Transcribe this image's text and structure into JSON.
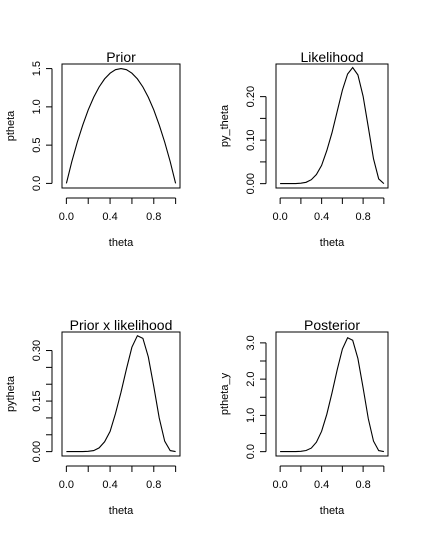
{
  "chart_data": [
    {
      "type": "line",
      "title": "Prior",
      "xlabel": "theta",
      "ylabel": "ptheta",
      "xlim": [
        -0.04,
        1.04
      ],
      "ylim": [
        -0.06,
        1.56
      ],
      "xticks": [
        0.0,
        0.2,
        0.4,
        0.6,
        0.8,
        1.0
      ],
      "xtick_labels": [
        "0.0",
        "",
        "0.4",
        "",
        "0.8",
        ""
      ],
      "yticks": [
        0.0,
        0.5,
        1.0,
        1.5
      ],
      "ytick_labels": [
        "0.0",
        "0.5",
        "1.0",
        "1.5"
      ],
      "grid": false,
      "series": [
        {
          "x": [
            0.0,
            0.05,
            0.1,
            0.15,
            0.2,
            0.25,
            0.3,
            0.35,
            0.4,
            0.45,
            0.5,
            0.55,
            0.6,
            0.65,
            0.7,
            0.75,
            0.8,
            0.85,
            0.9,
            0.95,
            1.0
          ],
          "y": [
            0.0,
            0.285,
            0.54,
            0.765,
            0.96,
            1.125,
            1.26,
            1.365,
            1.44,
            1.485,
            1.5,
            1.485,
            1.44,
            1.365,
            1.26,
            1.125,
            0.96,
            0.765,
            0.54,
            0.285,
            0.0
          ]
        }
      ]
    },
    {
      "type": "line",
      "title": "Likelihood",
      "xlabel": "theta",
      "ylabel": "py_theta",
      "xlim": [
        -0.04,
        1.04
      ],
      "ylim": [
        -0.01,
        0.275
      ],
      "xticks": [
        0.0,
        0.2,
        0.4,
        0.6,
        0.8,
        1.0
      ],
      "xtick_labels": [
        "0.0",
        "",
        "0.4",
        "",
        "0.8",
        ""
      ],
      "yticks": [
        0.0,
        0.05,
        0.1,
        0.15,
        0.2
      ],
      "ytick_labels": [
        "0.00",
        "",
        "0.10",
        "",
        "0.20"
      ],
      "grid": false,
      "series": [
        {
          "x": [
            0.0,
            0.05,
            0.1,
            0.15,
            0.2,
            0.25,
            0.3,
            0.35,
            0.4,
            0.45,
            0.5,
            0.55,
            0.6,
            0.65,
            0.7,
            0.75,
            0.8,
            0.85,
            0.9,
            0.95,
            1.0
          ],
          "y": [
            0.0,
            0.0,
            0.0,
            0.0,
            0.001,
            0.003,
            0.009,
            0.021,
            0.042,
            0.076,
            0.117,
            0.166,
            0.215,
            0.252,
            0.267,
            0.25,
            0.201,
            0.13,
            0.057,
            0.011,
            0.0
          ]
        }
      ]
    },
    {
      "type": "line",
      "title": "Prior x likelihood",
      "xlabel": "theta",
      "ylabel": "pytheta",
      "xlim": [
        -0.04,
        1.04
      ],
      "ylim": [
        -0.013,
        0.355
      ],
      "xticks": [
        0.0,
        0.2,
        0.4,
        0.6,
        0.8,
        1.0
      ],
      "xtick_labels": [
        "0.0",
        "",
        "0.4",
        "",
        "0.8",
        ""
      ],
      "yticks": [
        0.0,
        0.05,
        0.1,
        0.15,
        0.2,
        0.25,
        0.3
      ],
      "ytick_labels": [
        "0.00",
        "",
        "",
        "0.15",
        "",
        "",
        "0.30"
      ],
      "grid": false,
      "series": [
        {
          "x": [
            0.0,
            0.05,
            0.1,
            0.15,
            0.2,
            0.25,
            0.3,
            0.35,
            0.4,
            0.45,
            0.5,
            0.55,
            0.6,
            0.65,
            0.7,
            0.75,
            0.8,
            0.85,
            0.9,
            0.95,
            1.0
          ],
          "y": [
            0.0,
            0.0,
            0.0,
            0.0,
            0.001,
            0.003,
            0.011,
            0.029,
            0.06,
            0.113,
            0.176,
            0.246,
            0.31,
            0.344,
            0.336,
            0.281,
            0.193,
            0.1,
            0.031,
            0.003,
            0.0
          ]
        }
      ]
    },
    {
      "type": "line",
      "title": "Posterior",
      "xlabel": "theta",
      "ylabel": "ptheta_y",
      "xlim": [
        -0.04,
        1.04
      ],
      "ylim": [
        -0.12,
        3.3
      ],
      "xticks": [
        0.0,
        0.2,
        0.4,
        0.6,
        0.8,
        1.0
      ],
      "xtick_labels": [
        "0.0",
        "",
        "0.4",
        "",
        "0.8",
        ""
      ],
      "yticks": [
        0.0,
        0.5,
        1.0,
        1.5,
        2.0,
        2.5,
        3.0
      ],
      "ytick_labels": [
        "0.0",
        "",
        "1.0",
        "",
        "2.0",
        "",
        "3.0"
      ],
      "grid": false,
      "series": [
        {
          "x": [
            0.0,
            0.05,
            0.1,
            0.15,
            0.2,
            0.25,
            0.3,
            0.35,
            0.4,
            0.45,
            0.5,
            0.55,
            0.6,
            0.65,
            0.7,
            0.75,
            0.8,
            0.85,
            0.9,
            0.95,
            1.0
          ],
          "y": [
            0.0,
            0.0,
            0.0,
            0.0,
            0.009,
            0.033,
            0.099,
            0.26,
            0.56,
            1.03,
            1.62,
            2.26,
            2.83,
            3.14,
            3.07,
            2.57,
            1.76,
            0.91,
            0.29,
            0.03,
            0.0
          ]
        }
      ]
    }
  ]
}
